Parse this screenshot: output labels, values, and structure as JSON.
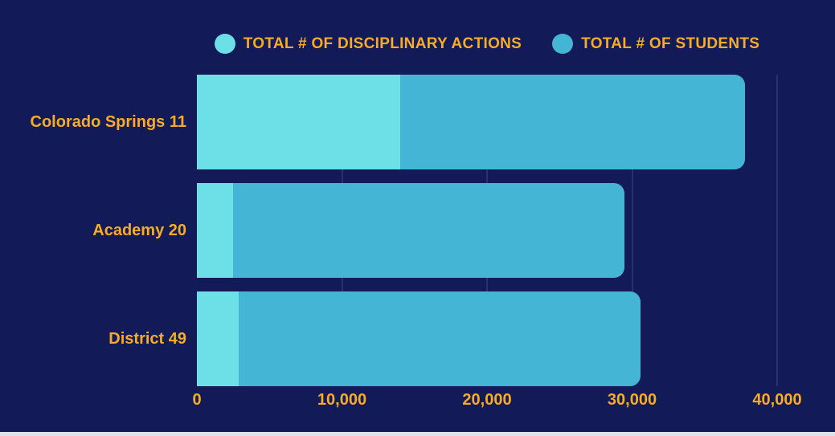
{
  "colors": {
    "background": "#121b57",
    "bar_disciplinary": "#6ce0e6",
    "bar_students": "#45b5d5",
    "label_gold": "#f7ab28",
    "gridline": "#28306e",
    "bottom_strip": "#dde1ee"
  },
  "chart_data": {
    "type": "bar",
    "orientation": "horizontal",
    "stacked": true,
    "title": "",
    "categories": [
      "Colorado Springs 11",
      "Academy 20",
      "District 49"
    ],
    "series": [
      {
        "name": "TOTAL # OF DISCIPLINARY ACTIONS",
        "color": "#6ce0e6",
        "values": [
          14000,
          2500,
          2900
        ]
      },
      {
        "name": "TOTAL # OF STUDENTS",
        "color": "#45b5d5",
        "values": [
          23800,
          27000,
          27700
        ]
      }
    ],
    "bar_totals": [
      37800,
      29500,
      30600
    ],
    "xlim": [
      0,
      40000
    ],
    "x_ticks": [
      0,
      10000,
      20000,
      30000,
      40000
    ],
    "x_tick_labels": [
      "0",
      "10,000",
      "20,000",
      "30,000",
      "40,000"
    ],
    "grid": "vertical",
    "legend_position": "top"
  }
}
